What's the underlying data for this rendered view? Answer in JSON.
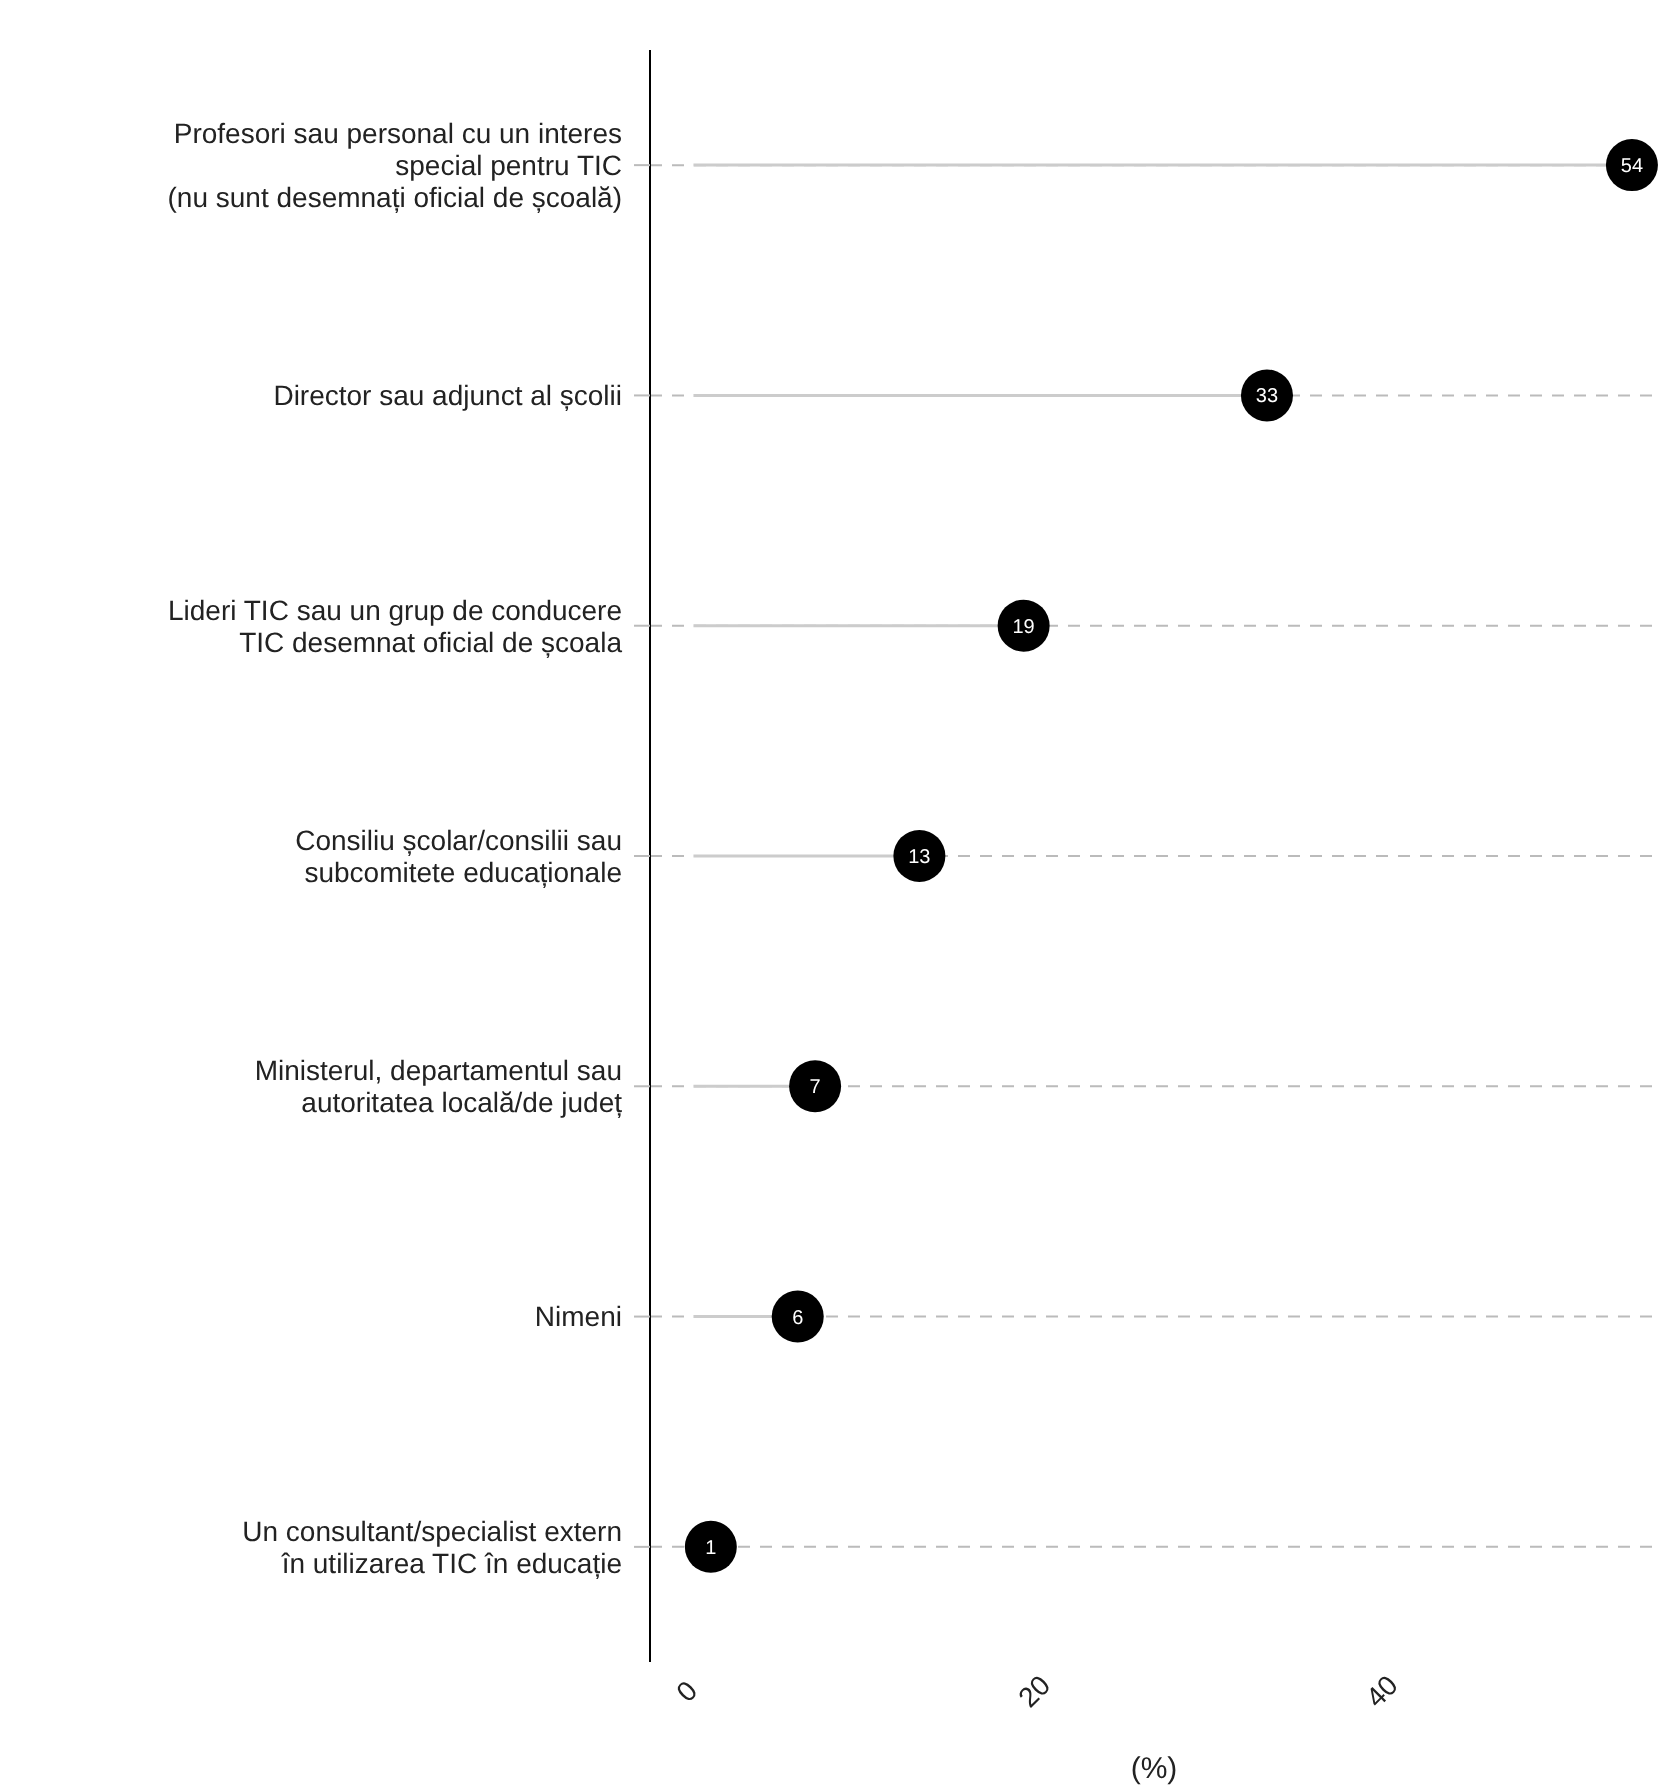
{
  "chart_data": {
    "type": "lollipop",
    "orientation": "horizontal",
    "xlabel": "(%)",
    "categories": [
      "Profesori sau personal cu un interes\nspecial pentru TIC\n(nu sunt desemnați oficial de școală)",
      "Director sau adjunct al școlii",
      "Lideri TIC sau un grup de conducere\nTIC desemnat oficial de școala",
      "Consiliu școlar/consilii sau\nsubcomitete educaționale",
      "Ministerul, departamentul sau\nautoritatea locală/de județ",
      "Nimeni",
      "Un consultant/specialist extern\nîn utilizarea TIC în educație"
    ],
    "values": [
      54,
      33,
      19,
      13,
      7,
      6,
      1
    ],
    "color": "#000000",
    "xlim": [
      -2.5,
      55.5
    ],
    "xticks": [
      0,
      20,
      40
    ],
    "grid": "y",
    "marker": "circle",
    "data_labels": true
  }
}
